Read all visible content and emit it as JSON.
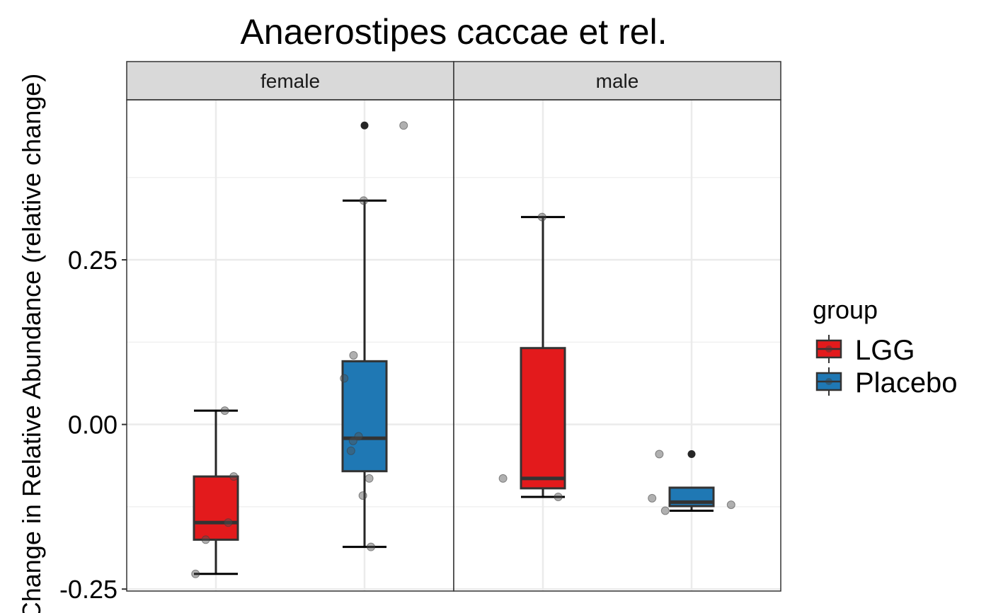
{
  "chart_data": {
    "type": "boxplot",
    "title": "Anaerostipes caccae et rel.",
    "ylabel": "Change in Relative Abundance (relative change)",
    "ylim": [
      -0.253,
      0.493
    ],
    "y_ticks": [
      -0.25,
      0.0,
      0.25
    ],
    "y_tick_labels": [
      "-0.25",
      "0.00",
      "0.25"
    ],
    "grid": true,
    "facets": [
      "female",
      "male"
    ],
    "groups": [
      "LGG",
      "Placebo"
    ],
    "colors": {
      "LGG": "#E31A1C",
      "Placebo": "#1F78B4"
    },
    "legend": {
      "title": "group",
      "position": "right",
      "labels": [
        "LGG",
        "Placebo"
      ]
    },
    "boxes": [
      {
        "facet": "female",
        "group": "LGG",
        "whisker_low": -0.227,
        "q1": -0.175,
        "median": -0.149,
        "q3": -0.079,
        "whisker_high": 0.021,
        "outliers": []
      },
      {
        "facet": "female",
        "group": "Placebo",
        "whisker_low": -0.186,
        "q1": -0.071,
        "median": -0.021,
        "q3": 0.096,
        "whisker_high": 0.34,
        "outliers": [
          0.454
        ]
      },
      {
        "facet": "male",
        "group": "LGG",
        "whisker_low": -0.11,
        "q1": -0.097,
        "median": -0.082,
        "q3": 0.116,
        "whisker_high": 0.315,
        "outliers": []
      },
      {
        "facet": "male",
        "group": "Placebo",
        "whisker_low": -0.131,
        "q1": -0.124,
        "median": -0.118,
        "q3": -0.096,
        "whisker_high": -0.096,
        "outliers": [
          -0.045
        ]
      }
    ],
    "points": [
      {
        "facet": "female",
        "group": "LGG",
        "jitter": -0.48,
        "y": -0.227
      },
      {
        "facet": "female",
        "group": "LGG",
        "jitter": -0.24,
        "y": -0.175
      },
      {
        "facet": "female",
        "group": "LGG",
        "jitter": 0.29,
        "y": -0.149
      },
      {
        "facet": "female",
        "group": "LGG",
        "jitter": 0.42,
        "y": -0.079
      },
      {
        "facet": "female",
        "group": "LGG",
        "jitter": 0.21,
        "y": 0.021
      },
      {
        "facet": "female",
        "group": "Placebo",
        "jitter": -0.48,
        "y": 0.07
      },
      {
        "facet": "female",
        "group": "Placebo",
        "jitter": -0.26,
        "y": 0.105
      },
      {
        "facet": "female",
        "group": "Placebo",
        "jitter": -0.32,
        "y": -0.04
      },
      {
        "facet": "female",
        "group": "Placebo",
        "jitter": -0.27,
        "y": -0.025
      },
      {
        "facet": "female",
        "group": "Placebo",
        "jitter": -0.14,
        "y": -0.018
      },
      {
        "facet": "female",
        "group": "Placebo",
        "jitter": -0.04,
        "y": -0.108
      },
      {
        "facet": "female",
        "group": "Placebo",
        "jitter": 0.11,
        "y": -0.082
      },
      {
        "facet": "female",
        "group": "Placebo",
        "jitter": 0.15,
        "y": -0.186
      },
      {
        "facet": "female",
        "group": "Placebo",
        "jitter": -0.02,
        "y": 0.34
      },
      {
        "facet": "female",
        "group": "Placebo",
        "jitter": 0.92,
        "y": 0.454
      },
      {
        "facet": "male",
        "group": "LGG",
        "jitter": -0.94,
        "y": -0.082
      },
      {
        "facet": "male",
        "group": "LGG",
        "jitter": 0.36,
        "y": -0.11
      },
      {
        "facet": "male",
        "group": "LGG",
        "jitter": -0.02,
        "y": 0.315
      },
      {
        "facet": "male",
        "group": "Placebo",
        "jitter": -0.93,
        "y": -0.112
      },
      {
        "facet": "male",
        "group": "Placebo",
        "jitter": -0.62,
        "y": -0.131
      },
      {
        "facet": "male",
        "group": "Placebo",
        "jitter": -0.76,
        "y": -0.045
      },
      {
        "facet": "male",
        "group": "Placebo",
        "jitter": 0.93,
        "y": -0.122
      }
    ]
  }
}
